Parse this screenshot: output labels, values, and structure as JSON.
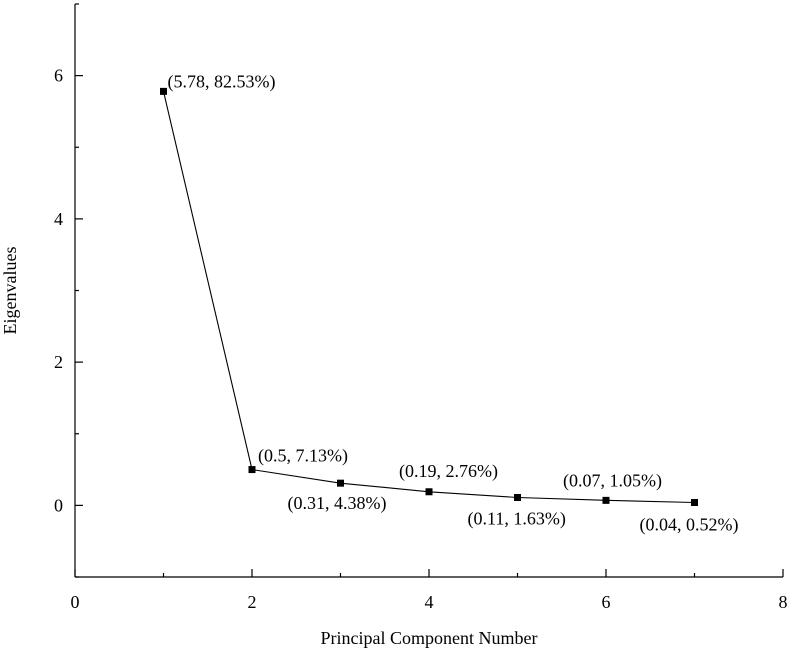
{
  "chart_data": {
    "type": "line",
    "title": "",
    "xlabel": "Principal Component Number",
    "ylabel": "Eigenvalues",
    "xlim": [
      0,
      8
    ],
    "ylim": [
      -1,
      7
    ],
    "x_ticks": [
      0,
      2,
      4,
      6,
      8
    ],
    "y_ticks": [
      0,
      2,
      4,
      6
    ],
    "grid": false,
    "marker": "square",
    "series": [
      {
        "x": [
          1,
          2,
          3,
          4,
          5,
          6,
          7
        ],
        "values": [
          5.78,
          0.5,
          0.31,
          0.19,
          0.11,
          0.07,
          0.04
        ],
        "labels": [
          "(5.78, 82.53%)",
          "(0.5, 7.13%)",
          "(0.31, 4.38%)",
          "(0.19, 2.76%)",
          "(0.11, 1.63%)",
          "(0.07, 1.05%)",
          "(0.04, 0.52%)"
        ]
      }
    ]
  }
}
